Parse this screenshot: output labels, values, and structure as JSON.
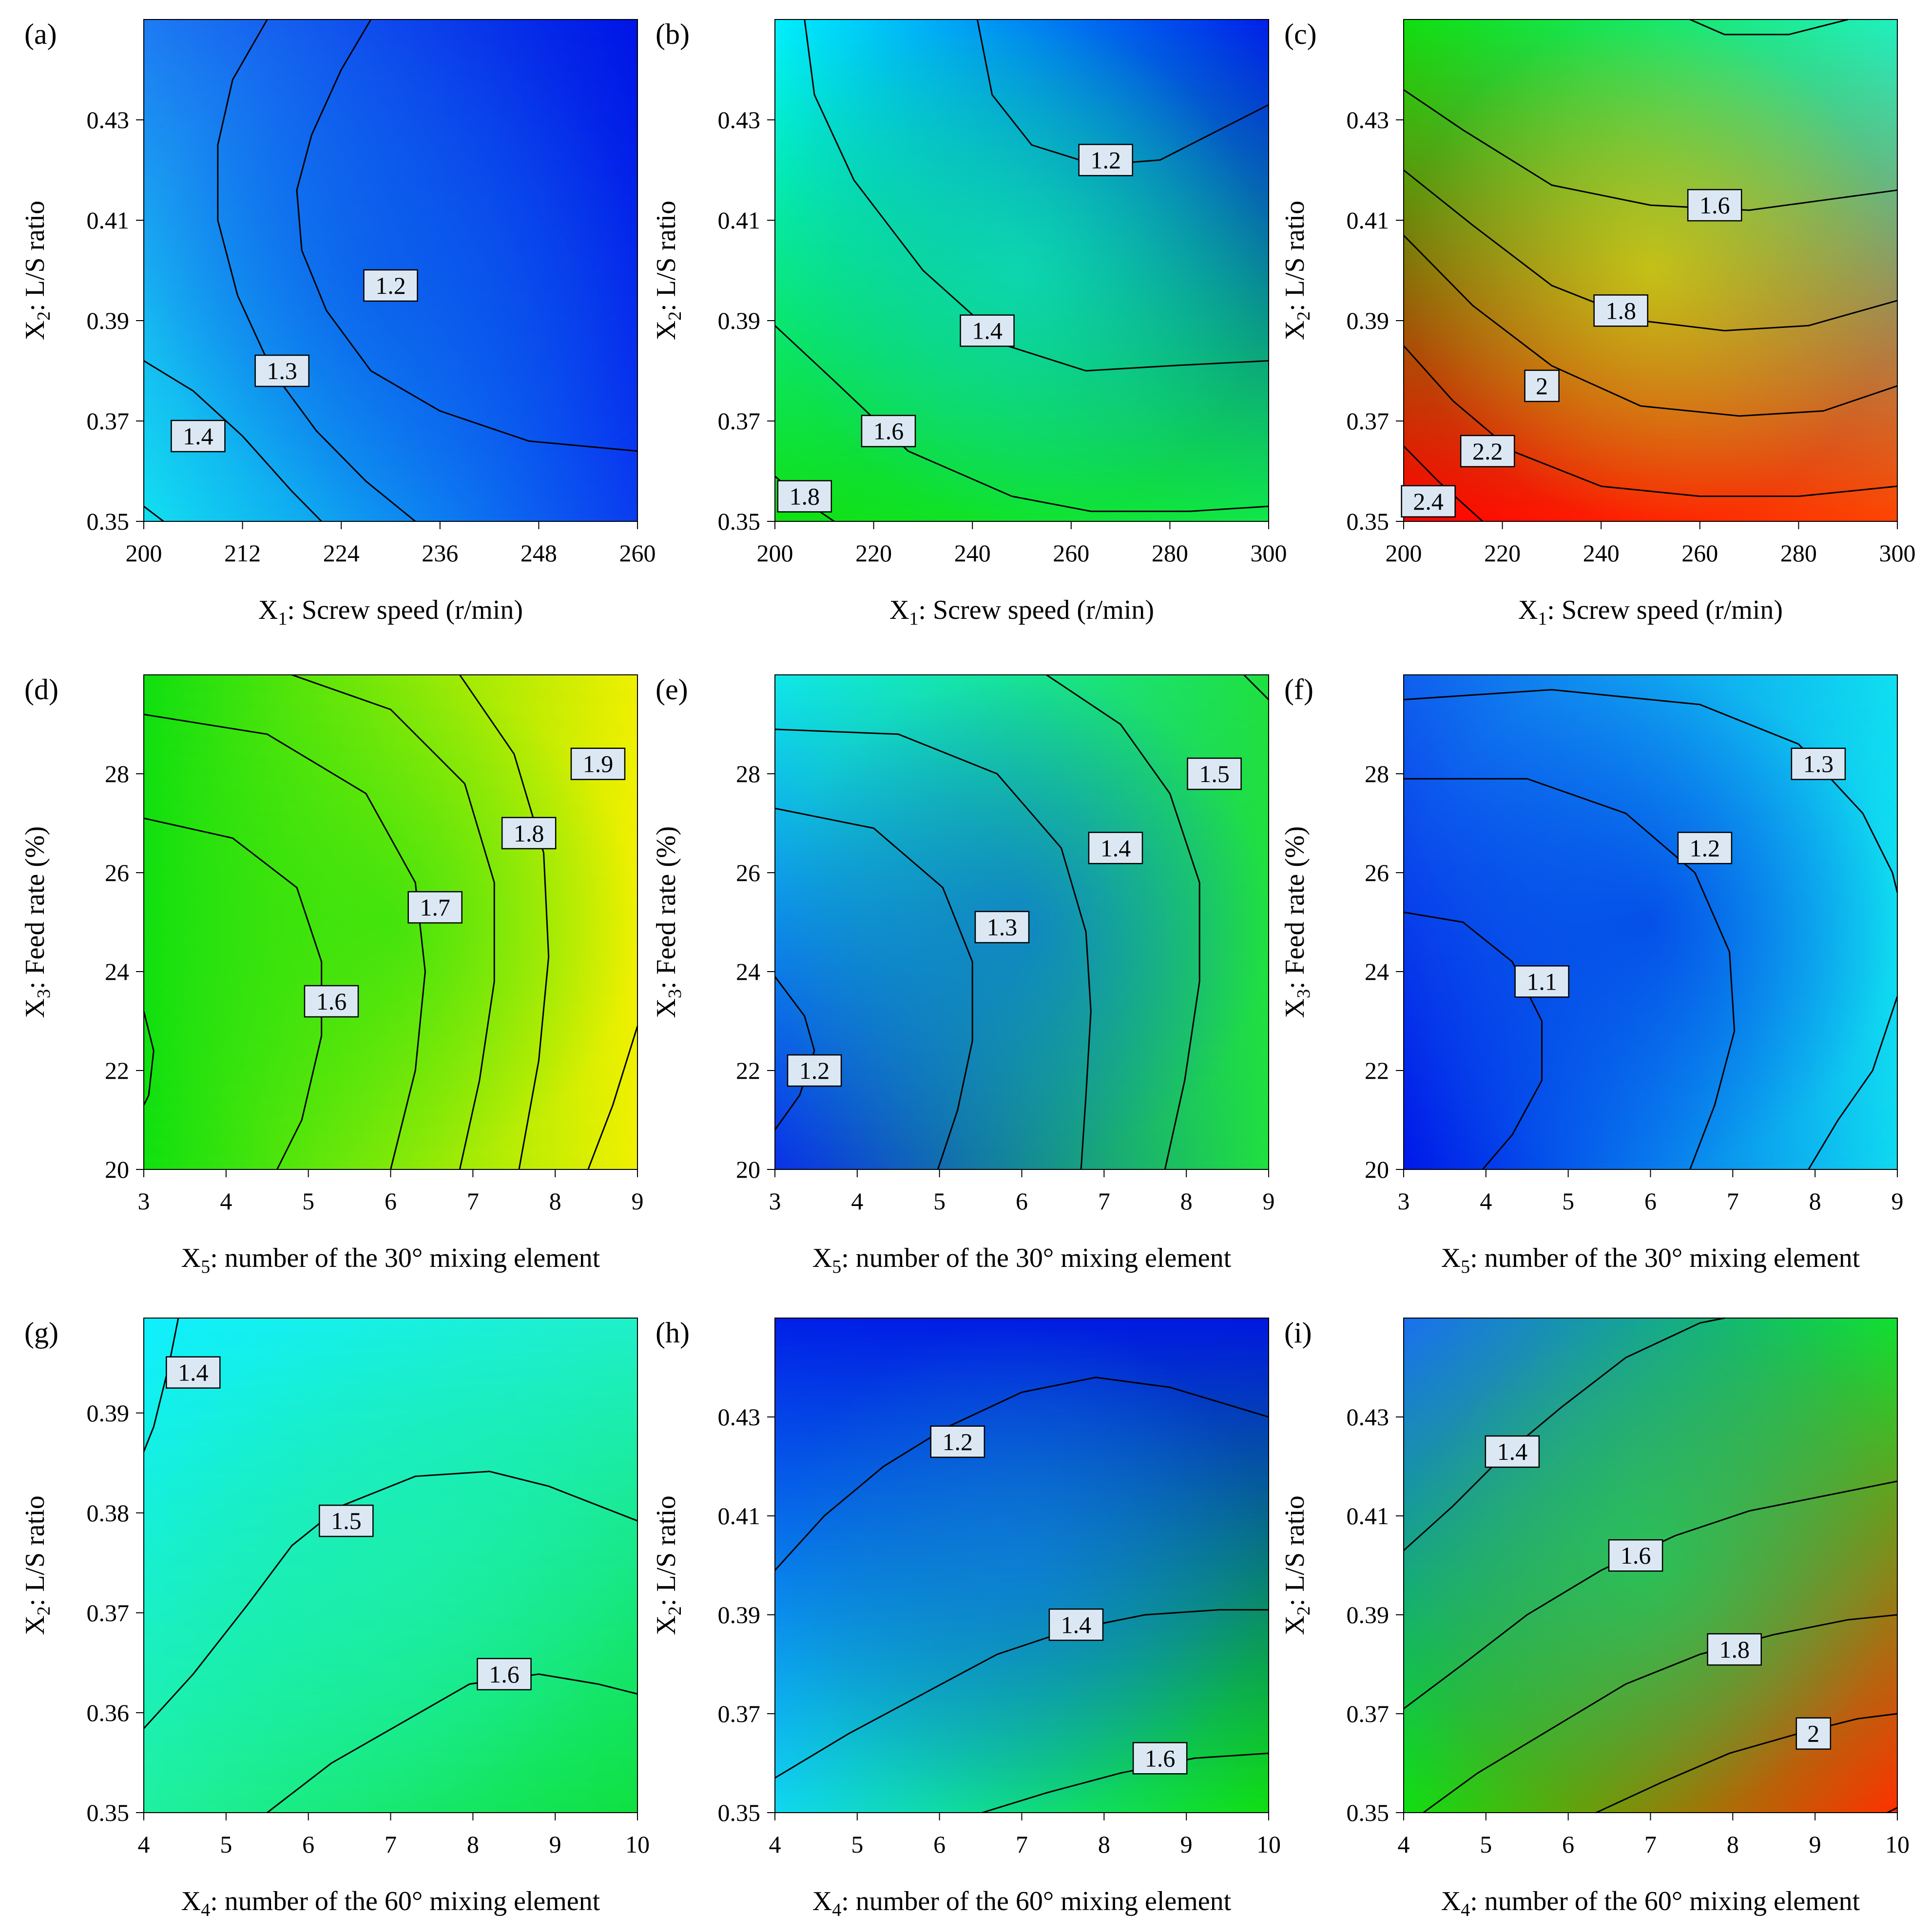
{
  "figure": {
    "panels": [
      {
        "id": "a",
        "label": "(a)",
        "xlabel": {
          "main": "X",
          "sub": "1",
          "rest": ": Screw speed (r/min)"
        },
        "ylabel": {
          "main": "X",
          "sub": "2",
          "rest": ": L/S ratio"
        },
        "x_ticks": [
          "200",
          "212",
          "224",
          "236",
          "248",
          "260"
        ],
        "y_ticks": [
          "0.35",
          "0.37",
          "0.39",
          "0.41",
          "0.43"
        ],
        "colors": {
          "top_left": "#1e7cf2",
          "top_right": "#0014e6",
          "bottom_left": "#12e0f0",
          "bottom_right": "#0a3cf0",
          "center": "#0a56ea"
        },
        "contour_labels": [
          "1.2",
          "1.3",
          "1.4"
        ]
      },
      {
        "id": "b",
        "label": "(b)",
        "xlabel": {
          "main": "X",
          "sub": "1",
          "rest": ": Screw speed (r/min)"
        },
        "ylabel": {
          "main": "X",
          "sub": "2",
          "rest": ": L/S ratio"
        },
        "x_ticks": [
          "200",
          "220",
          "240",
          "260",
          "280",
          "300"
        ],
        "y_ticks": [
          "0.35",
          "0.37",
          "0.39",
          "0.41",
          "0.43"
        ],
        "colors": {
          "top_left": "#00f0ff",
          "top_right": "#0020ea",
          "bottom_left": "#10e010",
          "bottom_right": "#10e848",
          "center": "#10f0c8"
        },
        "contour_labels": [
          "1.2",
          "1.4",
          "1.6",
          "1.8"
        ]
      },
      {
        "id": "c",
        "label": "(c)",
        "xlabel": {
          "main": "X",
          "sub": "1",
          "rest": ": Screw speed (r/min)"
        },
        "ylabel": {
          "main": "X",
          "sub": "2",
          "rest": ": L/S ratio"
        },
        "x_ticks": [
          "200",
          "220",
          "240",
          "260",
          "280",
          "300"
        ],
        "y_ticks": [
          "0.35",
          "0.37",
          "0.39",
          "0.41",
          "0.43"
        ],
        "colors": {
          "top_left": "#10e010",
          "top_right": "#20f0c0",
          "bottom_left": "#ff0000",
          "bottom_right": "#ff4400",
          "center": "#f4f000"
        },
        "contour_labels": [
          "1.6",
          "1.8",
          "2",
          "2.2",
          "2.4"
        ]
      },
      {
        "id": "d",
        "label": "(d)",
        "xlabel": {
          "main": "X",
          "sub": "5",
          "rest": ": number of the 30° mixing element"
        },
        "ylabel": {
          "main": "X",
          "sub": "3",
          "rest": ": Feed rate (%)"
        },
        "x_ticks": [
          "3",
          "4",
          "5",
          "6",
          "7",
          "8",
          "9"
        ],
        "y_ticks": [
          "20",
          "22",
          "24",
          "26",
          "28"
        ],
        "colors": {
          "top_left": "#10e010",
          "top_right": "#f0f000",
          "bottom_left": "#10e010",
          "bottom_right": "#f0f000",
          "center": "#10e010"
        },
        "contour_labels": [
          "1.6",
          "1.7",
          "1.8",
          "1.9"
        ]
      },
      {
        "id": "e",
        "label": "(e)",
        "xlabel": {
          "main": "X",
          "sub": "5",
          "rest": ": number of the 30° mixing element"
        },
        "ylabel": {
          "main": "X",
          "sub": "3",
          "rest": ": Feed rate (%)"
        },
        "x_ticks": [
          "3",
          "4",
          "5",
          "6",
          "7",
          "8",
          "9"
        ],
        "y_ticks": [
          "20",
          "22",
          "24",
          "26",
          "28"
        ],
        "colors": {
          "top_left": "#10e8e8",
          "top_right": "#20e040",
          "bottom_left": "#0a30e8",
          "bottom_right": "#20e040",
          "center": "#0a60ea"
        },
        "contour_labels": [
          "1.2",
          "1.3",
          "1.4",
          "1.5"
        ]
      },
      {
        "id": "f",
        "label": "(f)",
        "xlabel": {
          "main": "X",
          "sub": "5",
          "rest": ": number of the 30° mixing element"
        },
        "ylabel": {
          "main": "X",
          "sub": "3",
          "rest": ": Feed rate (%)"
        },
        "x_ticks": [
          "3",
          "4",
          "5",
          "6",
          "7",
          "8",
          "9"
        ],
        "y_ticks": [
          "20",
          "22",
          "24",
          "26",
          "28"
        ],
        "colors": {
          "top_left": "#1060ee",
          "top_right": "#10e0f0",
          "bottom_left": "#0018e8",
          "bottom_right": "#10d8f0",
          "center": "#0020e4"
        },
        "contour_labels": [
          "1.1",
          "1.2",
          "1.3"
        ]
      },
      {
        "id": "g",
        "label": "(g)",
        "xlabel": {
          "main": "X",
          "sub": "4",
          "rest": ": number of the 60° mixing element"
        },
        "ylabel": {
          "main": "X",
          "sub": "2",
          "rest": ": L/S ratio"
        },
        "x_ticks": [
          "4",
          "5",
          "6",
          "7",
          "8",
          "9",
          "10"
        ],
        "y_ticks": [
          "0.35",
          "0.36",
          "0.37",
          "0.38",
          "0.39"
        ],
        "colors": {
          "top_left": "#10f0ff",
          "top_right": "#20f0c8",
          "bottom_left": "#20f0a0",
          "bottom_right": "#10e040",
          "center": "#20f0b0"
        },
        "contour_labels": [
          "1.4",
          "1.5",
          "1.6"
        ]
      },
      {
        "id": "h",
        "label": "(h)",
        "xlabel": {
          "main": "X",
          "sub": "4",
          "rest": ": number of the 60° mixing element"
        },
        "ylabel": {
          "main": "X",
          "sub": "2",
          "rest": ": L/S ratio"
        },
        "x_ticks": [
          "4",
          "5",
          "6",
          "7",
          "8",
          "9",
          "10"
        ],
        "y_ticks": [
          "0.35",
          "0.37",
          "0.39",
          "0.41",
          "0.43"
        ],
        "colors": {
          "top_left": "#0020e8",
          "top_right": "#0018e0",
          "bottom_left": "#10d8f0",
          "bottom_right": "#10e010",
          "center": "#1080ee"
        },
        "contour_labels": [
          "1.2",
          "1.4",
          "1.6"
        ]
      },
      {
        "id": "i",
        "label": "(i)",
        "xlabel": {
          "main": "X",
          "sub": "4",
          "rest": ": number of the 60° mixing element"
        },
        "ylabel": {
          "main": "X",
          "sub": "2",
          "rest": ": L/S ratio"
        },
        "x_ticks": [
          "4",
          "5",
          "6",
          "7",
          "8",
          "9",
          "10"
        ],
        "y_ticks": [
          "0.35",
          "0.37",
          "0.39",
          "0.41",
          "0.43"
        ],
        "colors": {
          "top_left": "#1a70f0",
          "top_right": "#10e030",
          "bottom_left": "#10e010",
          "bottom_right": "#ff3000",
          "center": "#10e060"
        },
        "contour_labels": [
          "1.4",
          "1.6",
          "1.8",
          "2"
        ]
      }
    ]
  },
  "chart_data": [
    {
      "type": "heatmap",
      "subtype": "contour",
      "title": "(a)",
      "xlabel": "X1: Screw speed (r/min)",
      "ylabel": "X2: L/S ratio",
      "xlim": [
        200,
        260
      ],
      "ylim": [
        0.35,
        0.45
      ],
      "x_ticks": [
        200,
        212,
        224,
        236,
        248,
        260
      ],
      "y_ticks": [
        0.35,
        0.37,
        0.39,
        0.41,
        0.43
      ],
      "contours": [
        {
          "level": 1.2,
          "label_at": [
            229,
            0.398
          ]
        },
        {
          "level": 1.3,
          "label_at": [
            217.5,
            0.38
          ]
        },
        {
          "level": 1.4,
          "label_at": [
            206,
            0.366
          ]
        }
      ]
    },
    {
      "type": "heatmap",
      "subtype": "contour",
      "title": "(b)",
      "xlabel": "X1: Screw speed (r/min)",
      "ylabel": "X2: L/S ratio",
      "xlim": [
        200,
        300
      ],
      "ylim": [
        0.35,
        0.45
      ],
      "x_ticks": [
        200,
        220,
        240,
        260,
        280,
        300
      ],
      "y_ticks": [
        0.35,
        0.37,
        0.39,
        0.41,
        0.43
      ],
      "contours": [
        {
          "level": 1.2,
          "label_at": [
            267,
            0.422
          ]
        },
        {
          "level": 1.4,
          "label_at": [
            252,
            0.388
          ]
        },
        {
          "level": 1.6,
          "label_at": [
            223,
            0.368
          ]
        },
        {
          "level": 1.8,
          "label_at": [
            206,
            0.355
          ]
        }
      ]
    },
    {
      "type": "heatmap",
      "subtype": "contour",
      "title": "(c)",
      "xlabel": "X1: Screw speed (r/min)",
      "ylabel": "X2: L/S ratio",
      "xlim": [
        200,
        300
      ],
      "ylim": [
        0.35,
        0.45
      ],
      "x_ticks": [
        200,
        220,
        240,
        260,
        280,
        300
      ],
      "y_ticks": [
        0.35,
        0.37,
        0.39,
        0.41,
        0.43
      ],
      "contours": [
        {
          "level": 1.6,
          "label_at": [
            262,
            0.413
          ]
        },
        {
          "level": 1.8,
          "label_at": [
            244,
            0.392
          ]
        },
        {
          "level": 2.0,
          "label_at": [
            228,
            0.377
          ]
        },
        {
          "level": 2.2,
          "label_at": [
            217,
            0.364
          ]
        },
        {
          "level": 2.4,
          "label_at": [
            206,
            0.354
          ]
        }
      ]
    },
    {
      "type": "heatmap",
      "subtype": "contour",
      "title": "(d)",
      "xlabel": "X5: number of the 30° mixing element",
      "ylabel": "X3: Feed rate (%)",
      "xlim": [
        3,
        9
      ],
      "ylim": [
        20,
        30
      ],
      "x_ticks": [
        3,
        4,
        5,
        6,
        7,
        8,
        9
      ],
      "y_ticks": [
        20,
        22,
        24,
        26,
        28
      ],
      "contours": [
        {
          "level": 1.6,
          "label_at": [
            5.3,
            23.3
          ]
        },
        {
          "level": 1.7,
          "label_at": [
            6.5,
            25.2
          ]
        },
        {
          "level": 1.8,
          "label_at": [
            7.7,
            26.8
          ]
        },
        {
          "level": 1.9,
          "label_at": [
            8.6,
            28.2
          ]
        }
      ]
    },
    {
      "type": "heatmap",
      "subtype": "contour",
      "title": "(e)",
      "xlabel": "X5: number of the 30° mixing element",
      "ylabel": "X3: Feed rate (%)",
      "xlim": [
        3,
        9
      ],
      "ylim": [
        20,
        30
      ],
      "x_ticks": [
        3,
        4,
        5,
        6,
        7,
        8,
        9
      ],
      "y_ticks": [
        20,
        22,
        24,
        26,
        28
      ],
      "contours": [
        {
          "level": 1.2,
          "label_at": [
            3.5,
            22
          ]
        },
        {
          "level": 1.3,
          "label_at": [
            5.8,
            24.9
          ]
        },
        {
          "level": 1.4,
          "label_at": [
            7.2,
            26.5
          ]
        },
        {
          "level": 1.5,
          "label_at": [
            8.4,
            28
          ]
        }
      ]
    },
    {
      "type": "heatmap",
      "subtype": "contour",
      "title": "(f)",
      "xlabel": "X5: number of the 30° mixing element",
      "ylabel": "X3: Feed rate (%)",
      "xlim": [
        3,
        9
      ],
      "ylim": [
        20,
        30
      ],
      "x_ticks": [
        3,
        4,
        5,
        6,
        7,
        8,
        9
      ],
      "y_ticks": [
        20,
        22,
        24,
        26,
        28
      ],
      "contours": [
        {
          "level": 1.1,
          "label_at": [
            4.6,
            23.8
          ]
        },
        {
          "level": 1.2,
          "label_at": [
            6.7,
            26.4
          ]
        },
        {
          "level": 1.3,
          "label_at": [
            8.0,
            28.2
          ]
        }
      ]
    },
    {
      "type": "heatmap",
      "subtype": "contour",
      "title": "(g)",
      "xlabel": "X4: number of the 60° mixing element",
      "ylabel": "X2: L/S ratio",
      "xlim": [
        4,
        10
      ],
      "ylim": [
        0.35,
        0.3995
      ],
      "x_ticks": [
        4,
        5,
        6,
        7,
        8,
        9,
        10
      ],
      "y_ticks": [
        0.35,
        0.36,
        0.37,
        0.38,
        0.39
      ],
      "contours": [
        {
          "level": 1.4,
          "label_at": [
            4.6,
            0.3935
          ]
        },
        {
          "level": 1.5,
          "label_at": [
            6.5,
            0.3785
          ]
        },
        {
          "level": 1.6,
          "label_at": [
            8.4,
            0.3632
          ]
        }
      ]
    },
    {
      "type": "heatmap",
      "subtype": "contour",
      "title": "(h)",
      "xlabel": "X4: number of the 60° mixing element",
      "ylabel": "X2: L/S ratio",
      "xlim": [
        4,
        10
      ],
      "ylim": [
        0.35,
        0.45
      ],
      "x_ticks": [
        4,
        5,
        6,
        7,
        8,
        9,
        10
      ],
      "y_ticks": [
        0.35,
        0.37,
        0.39,
        0.41,
        0.43
      ],
      "contours": [
        {
          "level": 1.2,
          "label_at": [
            6.2,
            0.425
          ]
        },
        {
          "level": 1.4,
          "label_at": [
            7.7,
            0.387
          ]
        },
        {
          "level": 1.6,
          "label_at": [
            8.7,
            0.36
          ]
        }
      ]
    },
    {
      "type": "heatmap",
      "subtype": "contour",
      "title": "(i)",
      "xlabel": "X4: number of the 60° mixing element",
      "ylabel": "X2: L/S ratio",
      "xlim": [
        4,
        10
      ],
      "ylim": [
        0.35,
        0.45
      ],
      "x_ticks": [
        4,
        5,
        6,
        7,
        8,
        9,
        10
      ],
      "y_ticks": [
        0.35,
        0.37,
        0.39,
        0.41,
        0.43
      ],
      "contours": [
        {
          "level": 1.4,
          "label_at": [
            5.3,
            0.423
          ]
        },
        {
          "level": 1.6,
          "label_at": [
            6.8,
            0.401
          ]
        },
        {
          "level": 1.8,
          "label_at": [
            8.1,
            0.383
          ]
        },
        {
          "level": 2.0,
          "label_at": [
            9.0,
            0.365
          ]
        }
      ]
    }
  ]
}
